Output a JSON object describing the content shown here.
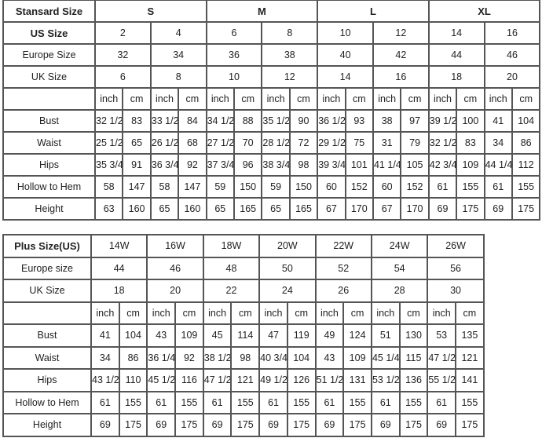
{
  "standard": {
    "header": {
      "label": "Stansard Size",
      "groups": [
        "S",
        "M",
        "L",
        "XL"
      ]
    },
    "us_size": {
      "label": "US Size",
      "values": [
        "2",
        "4",
        "6",
        "8",
        "10",
        "12",
        "14",
        "16"
      ]
    },
    "europe_size": {
      "label": "Europe Size",
      "values": [
        "32",
        "34",
        "36",
        "38",
        "40",
        "42",
        "44",
        "46"
      ]
    },
    "uk_size": {
      "label": "UK Size",
      "values": [
        "6",
        "8",
        "10",
        "12",
        "14",
        "16",
        "18",
        "20"
      ]
    },
    "units": [
      "inch",
      "cm"
    ],
    "measurements": [
      {
        "label": "Bust",
        "values": [
          "32 1/2",
          "83",
          "33 1/2",
          "84",
          "34 1/2",
          "88",
          "35 1/2",
          "90",
          "36 1/2",
          "93",
          "38",
          "97",
          "39 1/2",
          "100",
          "41",
          "104"
        ]
      },
      {
        "label": "Waist",
        "values": [
          "25 1/2",
          "65",
          "26 1/2",
          "68",
          "27 1/2",
          "70",
          "28 1/2",
          "72",
          "29 1/2",
          "75",
          "31",
          "79",
          "32 1/2",
          "83",
          "34",
          "86"
        ]
      },
      {
        "label": "Hips",
        "values": [
          "35 3/4",
          "91",
          "36 3/4",
          "92",
          "37 3/4",
          "96",
          "38 3/4",
          "98",
          "39 3/4",
          "101",
          "41 1/4",
          "105",
          "42 3/4",
          "109",
          "44 1/4",
          "112"
        ]
      },
      {
        "label": "Hollow to Hem",
        "values": [
          "58",
          "147",
          "58",
          "147",
          "59",
          "150",
          "59",
          "150",
          "60",
          "152",
          "60",
          "152",
          "61",
          "155",
          "61",
          "155"
        ]
      },
      {
        "label": "Height",
        "values": [
          "63",
          "160",
          "65",
          "160",
          "65",
          "165",
          "65",
          "165",
          "67",
          "170",
          "67",
          "170",
          "69",
          "175",
          "69",
          "175"
        ]
      }
    ]
  },
  "plus": {
    "us_size": {
      "label": "Plus Size(US)",
      "values": [
        "14W",
        "16W",
        "18W",
        "20W",
        "22W",
        "24W",
        "26W"
      ]
    },
    "europe_size": {
      "label": "Europe size",
      "values": [
        "44",
        "46",
        "48",
        "50",
        "52",
        "54",
        "56"
      ]
    },
    "uk_size": {
      "label": "UK Size",
      "values": [
        "18",
        "20",
        "22",
        "24",
        "26",
        "28",
        "30"
      ]
    },
    "units": [
      "inch",
      "cm"
    ],
    "measurements": [
      {
        "label": "Bust",
        "values": [
          "41",
          "104",
          "43",
          "109",
          "45",
          "114",
          "47",
          "119",
          "49",
          "124",
          "51",
          "130",
          "53",
          "135"
        ]
      },
      {
        "label": "Waist",
        "values": [
          "34",
          "86",
          "36 1/4",
          "92",
          "38 1/2",
          "98",
          "40 3/4",
          "104",
          "43",
          "109",
          "45 1/4",
          "115",
          "47 1/2",
          "121"
        ]
      },
      {
        "label": "Hips",
        "values": [
          "43 1/2",
          "110",
          "45 1/2",
          "116",
          "47 1/2",
          "121",
          "49 1/2",
          "126",
          "51 1/2",
          "131",
          "53 1/2",
          "136",
          "55 1/2",
          "141"
        ]
      },
      {
        "label": "Hollow to Hem",
        "values": [
          "61",
          "155",
          "61",
          "155",
          "61",
          "155",
          "61",
          "155",
          "61",
          "155",
          "61",
          "155",
          "61",
          "155"
        ]
      },
      {
        "label": "Height",
        "values": [
          "69",
          "175",
          "69",
          "175",
          "69",
          "175",
          "69",
          "175",
          "69",
          "175",
          "69",
          "175",
          "69",
          "175"
        ]
      }
    ]
  }
}
